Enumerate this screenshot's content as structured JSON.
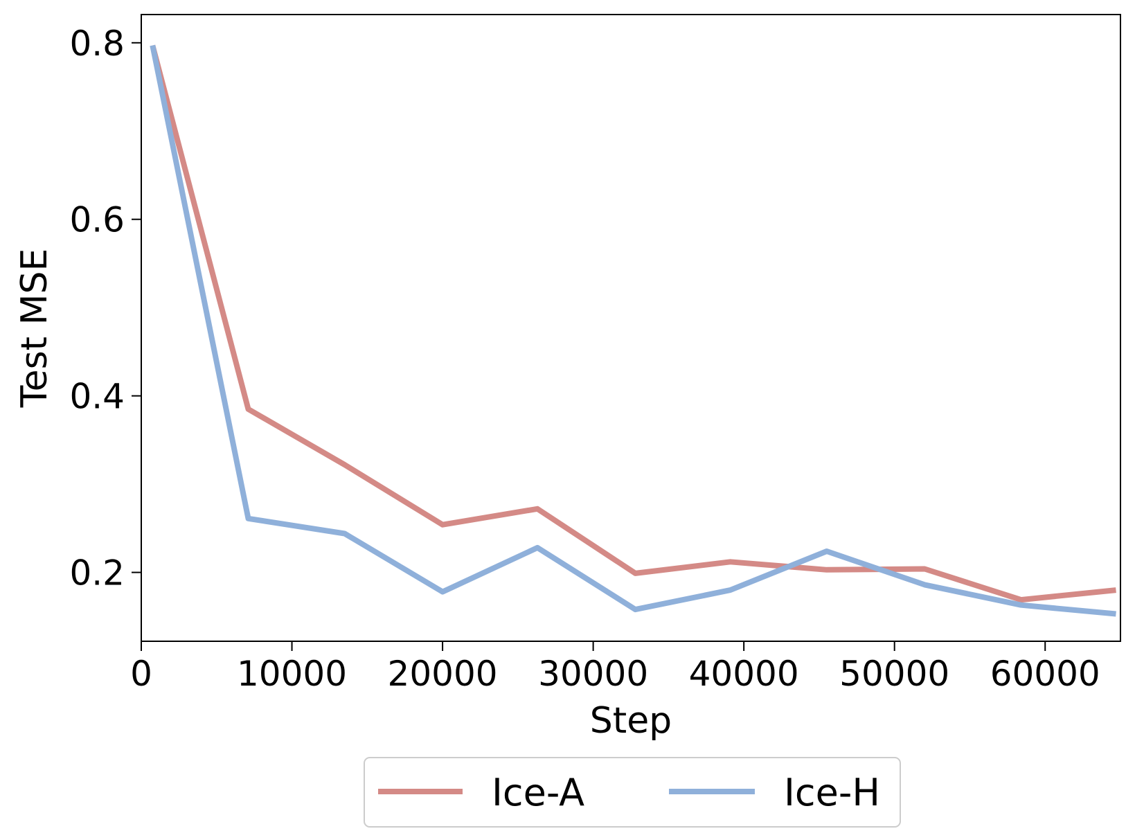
{
  "chart_data": {
    "type": "line",
    "title": "",
    "xlabel": "Step",
    "ylabel": "Test MSE",
    "xlim": [
      0,
      65000
    ],
    "ylim": [
      0.122,
      0.832
    ],
    "xticks": [
      0,
      10000,
      20000,
      30000,
      40000,
      50000,
      60000
    ],
    "xtick_labels": [
      "0",
      "10000",
      "20000",
      "30000",
      "40000",
      "50000",
      "60000"
    ],
    "yticks": [
      0.2,
      0.4,
      0.6,
      0.8
    ],
    "ytick_labels": [
      "0.2",
      "0.4",
      "0.6",
      "0.8"
    ],
    "grid": false,
    "legend_position": "bottom-center",
    "series": [
      {
        "name": "Ice-A",
        "color": "#d48a86",
        "x": [
          750,
          7100,
          13500,
          20000,
          26300,
          32800,
          39100,
          45500,
          52000,
          58400,
          64700
        ],
        "y": [
          0.797,
          0.385,
          0.322,
          0.254,
          0.272,
          0.199,
          0.212,
          0.203,
          0.204,
          0.169,
          0.18
        ]
      },
      {
        "name": "Ice-H",
        "color": "#8fb0da",
        "x": [
          750,
          7100,
          13500,
          20000,
          26300,
          32800,
          39100,
          45500,
          52000,
          58400,
          64700
        ],
        "y": [
          0.797,
          0.261,
          0.244,
          0.178,
          0.228,
          0.158,
          0.18,
          0.224,
          0.186,
          0.163,
          0.153
        ]
      }
    ]
  }
}
